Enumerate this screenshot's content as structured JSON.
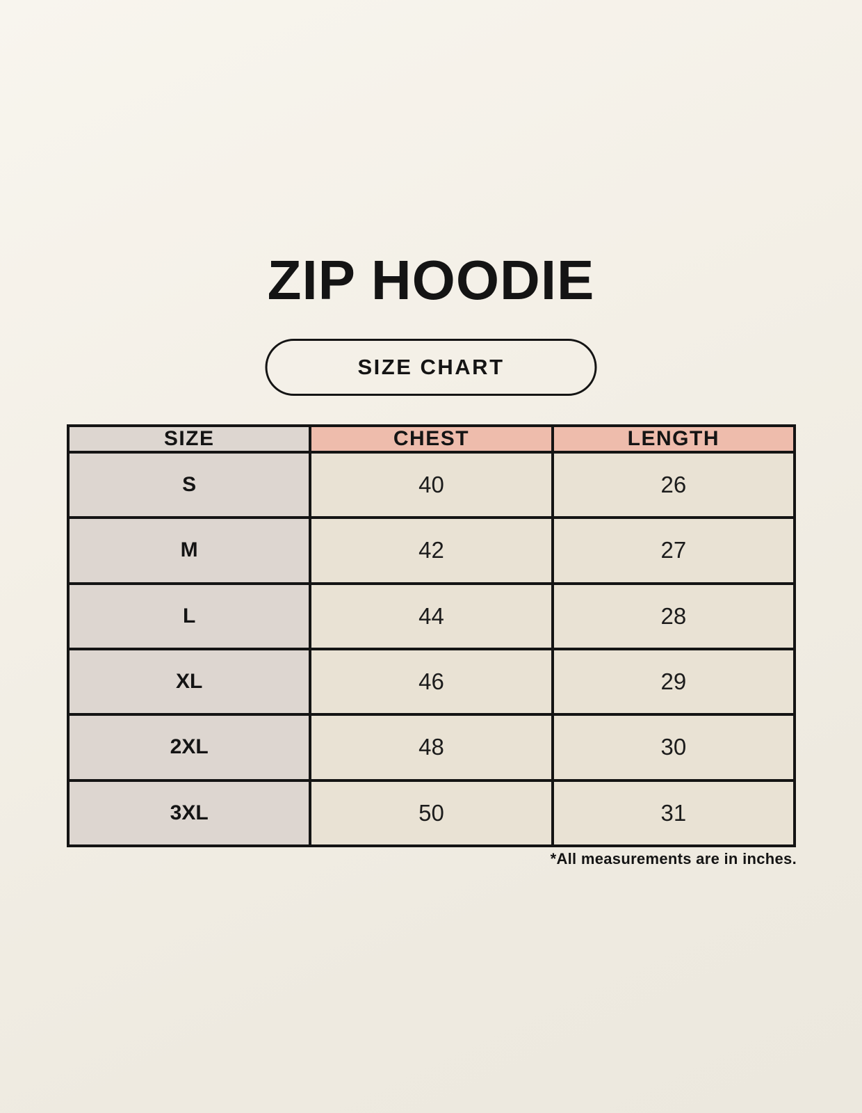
{
  "header": {
    "title": "ZIP HOODIE",
    "badge_label": "SIZE CHART"
  },
  "table": {
    "columns": [
      "SIZE",
      "CHEST",
      "LENGTH"
    ],
    "rows": [
      {
        "size": "S",
        "chest": "40",
        "length": "26"
      },
      {
        "size": "M",
        "chest": "42",
        "length": "27"
      },
      {
        "size": "L",
        "chest": "44",
        "length": "28"
      },
      {
        "size": "XL",
        "chest": "46",
        "length": "29"
      },
      {
        "size": "2XL",
        "chest": "48",
        "length": "30"
      },
      {
        "size": "3XL",
        "chest": "50",
        "length": "31"
      }
    ]
  },
  "footnote": "*All measurements are in inches.",
  "colors": {
    "background": "#F2EEE5",
    "header_accent_pink": "#EEBCAC",
    "size_column_gray": "#DDD6D0",
    "data_cell_cream": "#E9E2D4",
    "border_black": "#141414",
    "text_black": "#161616"
  },
  "chart_data": {
    "type": "table",
    "title": "ZIP HOODIE",
    "subtitle": "SIZE CHART",
    "columns": [
      "SIZE",
      "CHEST",
      "LENGTH"
    ],
    "rows": [
      [
        "S",
        40,
        26
      ],
      [
        "M",
        42,
        27
      ],
      [
        "L",
        44,
        28
      ],
      [
        "XL",
        46,
        29
      ],
      [
        "2XL",
        48,
        30
      ],
      [
        "3XL",
        50,
        31
      ]
    ],
    "note": "*All measurements are in inches."
  }
}
